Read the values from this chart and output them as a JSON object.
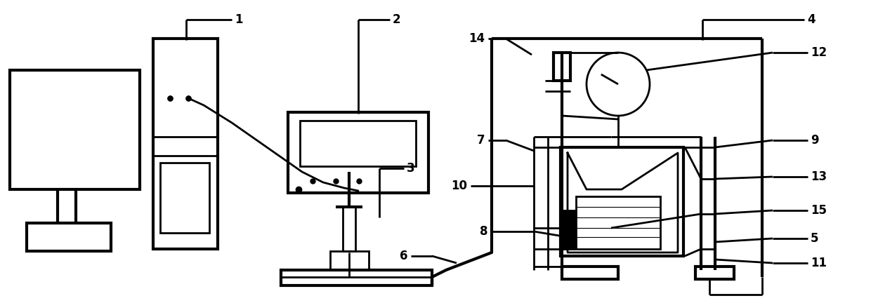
{
  "background_color": "#ffffff",
  "line_color": "#000000",
  "lw": 2.0,
  "lw_thick": 3.0,
  "label_fontsize": 12,
  "figsize": [
    12.4,
    4.32
  ],
  "dpi": 100
}
